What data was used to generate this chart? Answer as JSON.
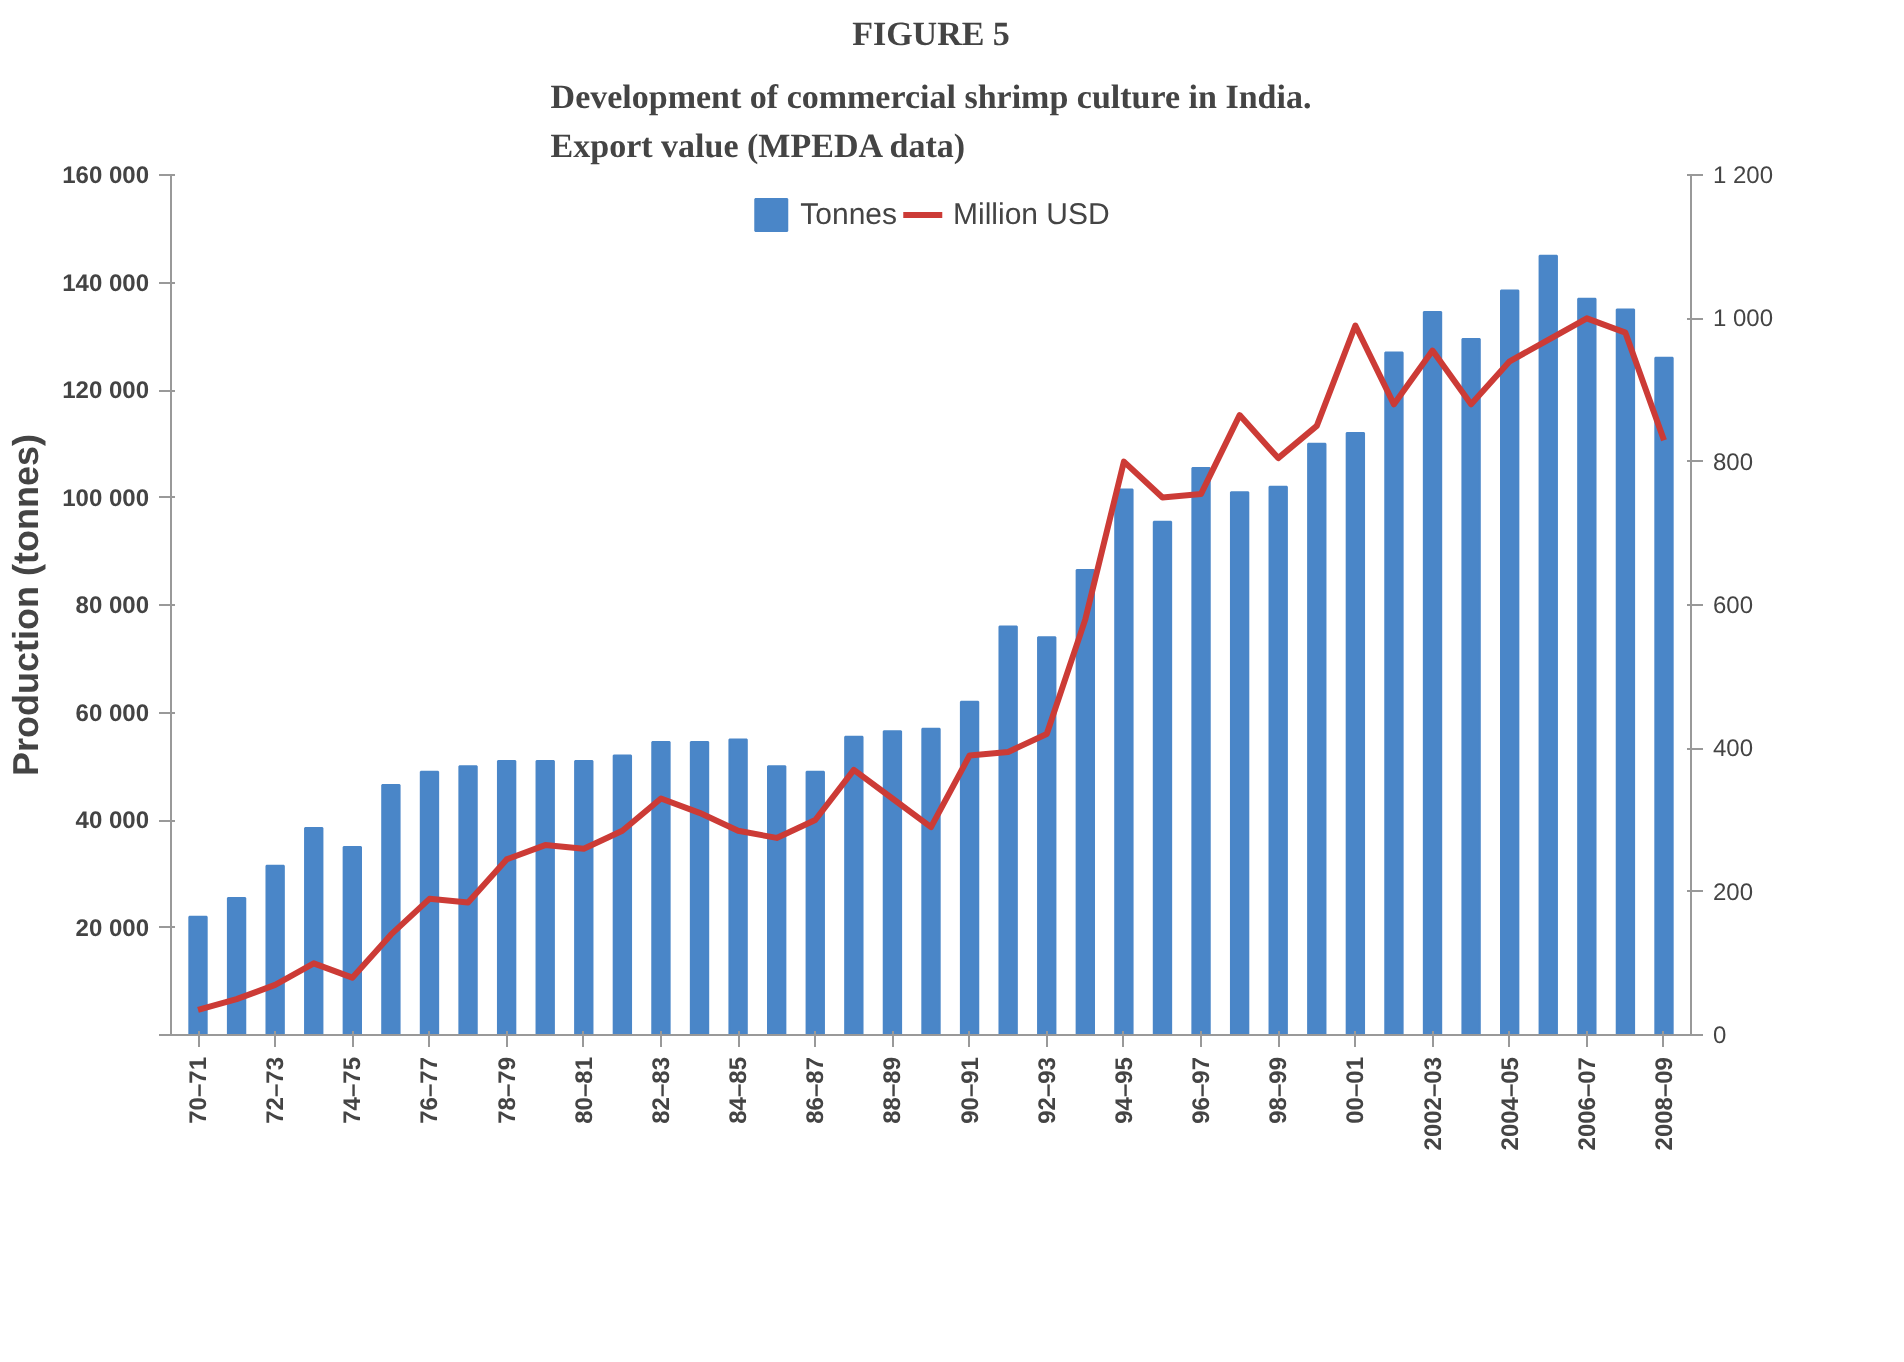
{
  "chart_data": {
    "type": "bar",
    "title": "FIGURE 5",
    "subtitle": "Development of commercial shrimp culture in India.\nExport value (MPEDA data)",
    "ylabel": "Production (tonnes)",
    "categories": [
      "70–71",
      null,
      "72–73",
      null,
      "74–75",
      null,
      "76–77",
      null,
      "78–79",
      null,
      "80–81",
      null,
      "82–83",
      null,
      "84–85",
      null,
      "86–87",
      null,
      "88–89",
      null,
      "90–91",
      null,
      "92–93",
      null,
      "94–95",
      null,
      "96–97",
      null,
      "98–99",
      null,
      "00–01",
      null,
      "2002–03",
      null,
      "2004–05",
      null,
      "2006–07",
      null,
      "2008–09"
    ],
    "series": [
      {
        "name": "Tonnes",
        "color": "#4a86c8",
        "values": [
          22000,
          25500,
          31500,
          38500,
          35000,
          46500,
          49000,
          50000,
          51000,
          51000,
          51000,
          52000,
          54500,
          54500,
          55000,
          50000,
          49000,
          55500,
          56500,
          57000,
          62000,
          76000,
          74000,
          86500,
          101500,
          95500,
          105500,
          101000,
          102000,
          110000,
          112000,
          127000,
          134500,
          129500,
          138500,
          145000,
          137000,
          135000,
          126000
        ]
      },
      {
        "name": "Million USD",
        "type": "line",
        "axis": "y2",
        "color": "#cc3b36",
        "values": [
          35,
          50,
          70,
          100,
          80,
          140,
          190,
          185,
          245,
          265,
          260,
          285,
          330,
          310,
          285,
          275,
          300,
          370,
          330,
          290,
          390,
          395,
          420,
          580,
          800,
          750,
          755,
          865,
          805,
          850,
          990,
          880,
          955,
          880,
          940,
          970,
          1000,
          980,
          830
        ]
      }
    ],
    "ylim": [
      0,
      160000
    ],
    "yticks": [
      {
        "value": 0,
        "label": null
      },
      {
        "value": 20000,
        "label": "20 000"
      },
      {
        "value": 40000,
        "label": "40 000"
      },
      {
        "value": 60000,
        "label": "60 000"
      },
      {
        "value": 80000,
        "label": "80 000"
      },
      {
        "value": 100000,
        "label": "100 000"
      },
      {
        "value": 120000,
        "label": "120 000"
      },
      {
        "value": 140000,
        "label": "140 000"
      },
      {
        "value": 160000,
        "label": "160 000"
      }
    ],
    "y2lim": [
      0,
      1200
    ],
    "y2ticks": [
      0,
      200,
      400,
      600,
      800,
      {
        "value": 1000,
        "label": "1 000"
      },
      {
        "value": 1200,
        "label": "1 200"
      }
    ],
    "legend": "top",
    "grid": false
  }
}
